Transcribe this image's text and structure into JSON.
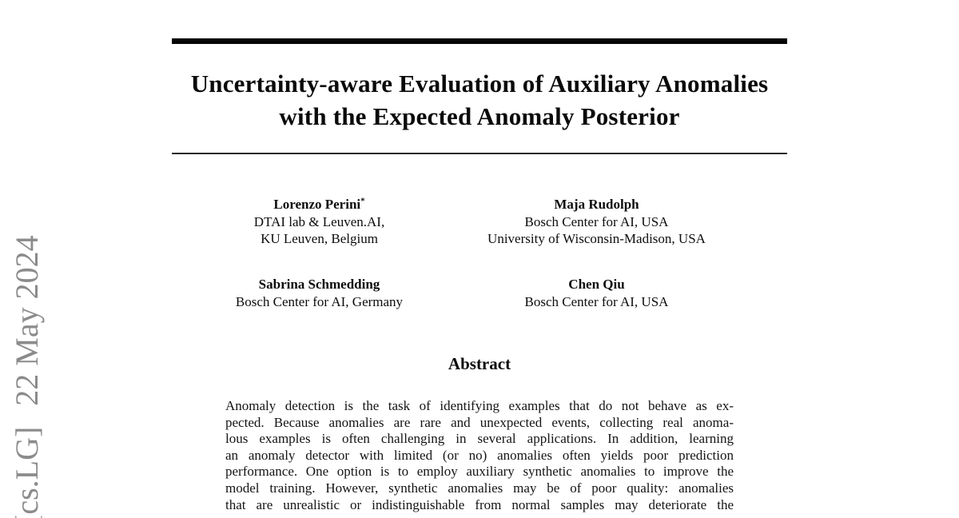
{
  "title": {
    "line1": "Uncertainty-aware Evaluation of Auxiliary Anomalies",
    "line2": "with the Expected Anomaly Posterior"
  },
  "watermark": {
    "category": "[cs.LG]",
    "date": "22 May 2024",
    "color": "#8b8b8b"
  },
  "authors": [
    {
      "name": "Lorenzo Perini",
      "marker": "*",
      "affiliations": [
        "DTAI lab & Leuven.AI,",
        "KU Leuven, Belgium"
      ]
    },
    {
      "name": "Maja Rudolph",
      "marker": "",
      "affiliations": [
        "Bosch Center for AI, USA",
        "University of Wisconsin-Madison, USA"
      ]
    },
    {
      "name": "Sabrina Schmedding",
      "marker": "",
      "affiliations": [
        "Bosch Center for AI, Germany"
      ]
    },
    {
      "name": "Chen Qiu",
      "marker": "",
      "affiliations": [
        "Bosch Center for AI, USA"
      ]
    }
  ],
  "abstract": {
    "heading": "Abstract",
    "lines": [
      "Anomaly detection is the task of identifying examples that do not behave as ex-",
      "pected. Because anomalies are rare and unexpected events, collecting real anoma-",
      "lous examples is often challenging in several applications. In addition, learning",
      "an anomaly detector with limited (or no) anomalies often yields poor prediction",
      "performance. One option is to employ auxiliary synthetic anomalies to improve the",
      "model training. However, synthetic anomalies may be of poor quality: anomalies",
      "that are unrealistic or indistinguishable from normal samples may deteriorate the"
    ]
  }
}
